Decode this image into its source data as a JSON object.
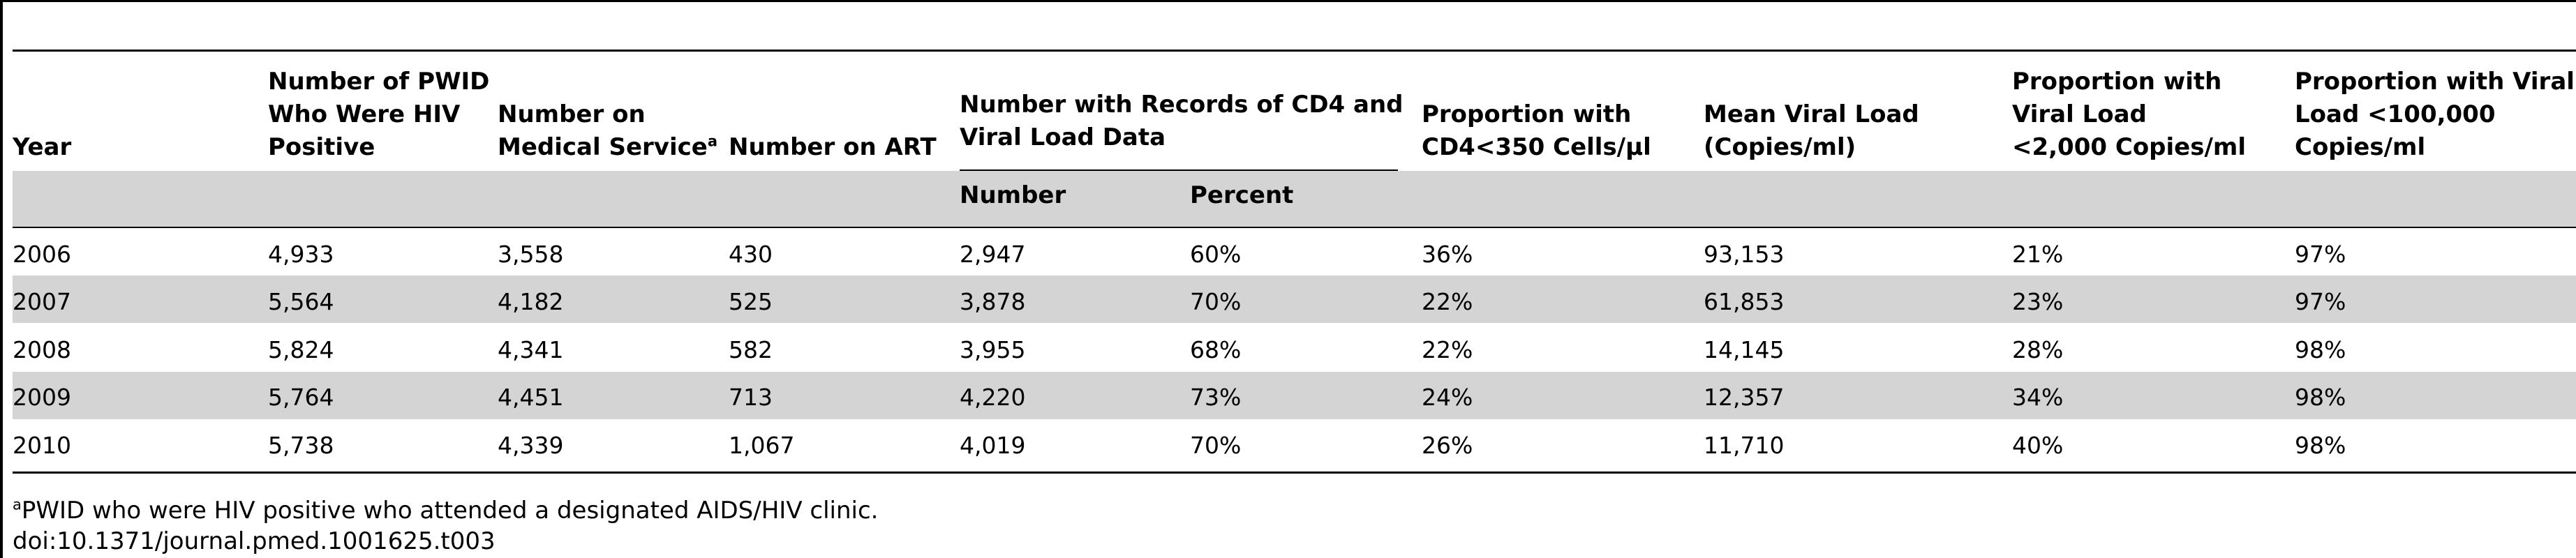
{
  "table": {
    "headers": {
      "year": "Year",
      "pwid_hiv": [
        "Number of PWID",
        "Who Were HIV",
        "Positive"
      ],
      "medical_service": [
        "Number on",
        "Medical Service"
      ],
      "medical_service_sup": "a",
      "art": "Number on ART",
      "records_group": [
        "Number with Records of CD4 and",
        "Viral Load Data"
      ],
      "records_number": "Number",
      "records_percent": "Percent",
      "cd4": [
        "Proportion with",
        "CD4<350 Cells/μl"
      ],
      "mean_vl": [
        "Mean Viral Load",
        "(Copies/ml)"
      ],
      "vl_2000": [
        "Proportion with",
        "Viral Load",
        "<2,000 Copies/ml"
      ],
      "vl_100000": [
        "Proportion with Viral",
        "Load <100,000",
        "Copies/ml"
      ]
    },
    "rows": [
      [
        "2006",
        "4,933",
        "3,558",
        "430",
        "2,947",
        "60%",
        "36%",
        "93,153",
        "21%",
        "97%"
      ],
      [
        "2007",
        "5,564",
        "4,182",
        "525",
        "3,878",
        "70%",
        "22%",
        "61,853",
        "23%",
        "97%"
      ],
      [
        "2008",
        "5,824",
        "4,341",
        "582",
        "3,955",
        "68%",
        "22%",
        "14,145",
        "28%",
        "98%"
      ],
      [
        "2009",
        "5,764",
        "4,451",
        "713",
        "4,220",
        "73%",
        "24%",
        "12,357",
        "34%",
        "98%"
      ],
      [
        "2010",
        "5,738",
        "4,339",
        "1,067",
        "4,019",
        "70%",
        "26%",
        "11,710",
        "40%",
        "98%"
      ]
    ]
  },
  "footnote": {
    "marker": "a",
    "text": "PWID who were HIV positive who attended a designated AIDS/HIV clinic."
  },
  "doi": "doi:10.1371/journal.pmed.1001625.t003"
}
